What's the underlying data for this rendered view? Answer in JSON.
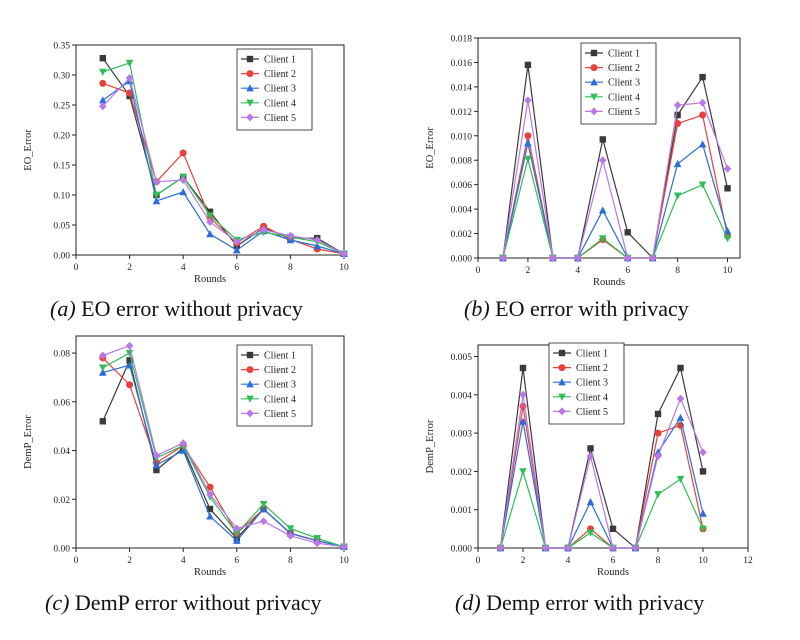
{
  "series_names": [
    "Client 1",
    "Client 2",
    "Client 3",
    "Client 4",
    "Client 5"
  ],
  "series_colors": [
    "#3a3a3a",
    "#e8413c",
    "#2a6fd6",
    "#2fbf56",
    "#b879e6"
  ],
  "series_markers": [
    "square",
    "circle",
    "triangle-up",
    "triangle-down",
    "diamond"
  ],
  "captions": [
    {
      "letter": "(a)",
      "text": " EO error without privacy"
    },
    {
      "letter": "(b)",
      "text": " EO error with privacy"
    },
    {
      "letter": "(c)",
      "text": " DemP error without privacy"
    },
    {
      "letter": "(d)",
      "text": " Demp error with privacy"
    }
  ],
  "chart_data": [
    {
      "type": "line",
      "xlabel": "Rounds",
      "ylabel": "EO_Error",
      "xlim": [
        0,
        10
      ],
      "ylim": [
        0,
        0.35
      ],
      "xticks": [
        0,
        2,
        4,
        6,
        8,
        10
      ],
      "yticks": [
        0,
        0.05,
        0.1,
        0.15,
        0.2,
        0.25,
        0.3,
        0.35
      ],
      "ytick_labels": [
        "0.00",
        "0.05",
        "0.10",
        "0.15",
        "0.20",
        "0.25",
        "0.30",
        "0.35"
      ],
      "grid": false,
      "legend": "top-right",
      "x": [
        1,
        2,
        3,
        4,
        5,
        6,
        7,
        8,
        9,
        10
      ],
      "series": [
        {
          "name": "Client 1",
          "values": [
            0.328,
            0.265,
            0.1,
            0.13,
            0.072,
            0.015,
            0.045,
            0.028,
            0.028,
            0.002
          ]
        },
        {
          "name": "Client 2",
          "values": [
            0.286,
            0.27,
            0.122,
            0.17,
            0.062,
            0.02,
            0.048,
            0.026,
            0.01,
            0.002
          ]
        },
        {
          "name": "Client 3",
          "values": [
            0.258,
            0.29,
            0.09,
            0.105,
            0.035,
            0.008,
            0.04,
            0.025,
            0.015,
            0.002
          ]
        },
        {
          "name": "Client 4",
          "values": [
            0.305,
            0.32,
            0.1,
            0.13,
            0.066,
            0.025,
            0.038,
            0.03,
            0.022,
            0.002
          ]
        },
        {
          "name": "Client 5",
          "values": [
            0.248,
            0.295,
            0.122,
            0.125,
            0.055,
            0.022,
            0.042,
            0.032,
            0.025,
            0.002
          ]
        }
      ]
    },
    {
      "type": "line",
      "xlabel": "Rounds",
      "ylabel": "EO_Error",
      "xlim": [
        0,
        10.5
      ],
      "ylim": [
        0,
        0.018
      ],
      "xticks": [
        0,
        2,
        4,
        6,
        8,
        10
      ],
      "yticks": [
        0,
        0.002,
        0.004,
        0.006,
        0.008,
        0.01,
        0.012,
        0.014,
        0.016,
        0.018
      ],
      "ytick_labels": [
        "0.000",
        "0.002",
        "0.004",
        "0.006",
        "0.008",
        "0.010",
        "0.012",
        "0.014",
        "0.016",
        "0.018"
      ],
      "grid": false,
      "legend": "top-center",
      "x": [
        1,
        2,
        3,
        4,
        5,
        6,
        7,
        8,
        9,
        10
      ],
      "series": [
        {
          "name": "Client 1",
          "values": [
            0,
            0.0158,
            0,
            0,
            0.0097,
            0.0021,
            0,
            0.0117,
            0.0148,
            0.0057
          ]
        },
        {
          "name": "Client 2",
          "values": [
            0,
            0.01,
            0,
            0,
            0.0015,
            0,
            0,
            0.011,
            0.0117,
            0.0018
          ]
        },
        {
          "name": "Client 3",
          "values": [
            0,
            0.0094,
            0,
            0,
            0.0039,
            0,
            0,
            0.0077,
            0.0093,
            0.0022
          ]
        },
        {
          "name": "Client 4",
          "values": [
            0,
            0.0081,
            0,
            0,
            0.0016,
            0,
            0,
            0.0051,
            0.006,
            0.0016
          ]
        },
        {
          "name": "Client 5",
          "values": [
            0,
            0.0129,
            0,
            0,
            0.008,
            0,
            0,
            0.0125,
            0.0127,
            0.0073
          ]
        }
      ]
    },
    {
      "type": "line",
      "xlabel": "Rounds",
      "ylabel": "DemP_Error",
      "xlim": [
        0,
        10
      ],
      "ylim": [
        0,
        0.087
      ],
      "xticks": [
        0,
        2,
        4,
        6,
        8,
        10
      ],
      "yticks": [
        0,
        0.02,
        0.04,
        0.06,
        0.08
      ],
      "ytick_labels": [
        "0.00",
        "0.02",
        "0.04",
        "0.06",
        "0.08"
      ],
      "grid": false,
      "legend": "top-right",
      "x": [
        1,
        2,
        3,
        4,
        5,
        6,
        7,
        8,
        9,
        10
      ],
      "series": [
        {
          "name": "Client 1",
          "values": [
            0.052,
            0.077,
            0.032,
            0.041,
            0.016,
            0.004,
            0.016,
            0.006,
            0.003,
            0.0005
          ]
        },
        {
          "name": "Client 2",
          "values": [
            0.078,
            0.067,
            0.035,
            0.042,
            0.025,
            0.006,
            0.016,
            0.006,
            0.003,
            0.0005
          ]
        },
        {
          "name": "Client 3",
          "values": [
            0.072,
            0.075,
            0.034,
            0.04,
            0.013,
            0.003,
            0.016,
            0.006,
            0.003,
            0.0005
          ]
        },
        {
          "name": "Client 4",
          "values": [
            0.074,
            0.08,
            0.037,
            0.042,
            0.021,
            0.006,
            0.018,
            0.008,
            0.004,
            0.0005
          ]
        },
        {
          "name": "Client 5",
          "values": [
            0.079,
            0.083,
            0.038,
            0.043,
            0.022,
            0.008,
            0.011,
            0.005,
            0.002,
            0.0005
          ]
        }
      ]
    },
    {
      "type": "line",
      "xlabel": "Rounds",
      "ylabel": "DemP_Error",
      "xlim": [
        0,
        12
      ],
      "ylim": [
        0,
        0.0053
      ],
      "xticks": [
        0,
        2,
        4,
        6,
        8,
        10,
        12
      ],
      "yticks": [
        0,
        0.001,
        0.002,
        0.003,
        0.004,
        0.005
      ],
      "ytick_labels": [
        "0.000",
        "0.001",
        "0.002",
        "0.003",
        "0.004",
        "0.005"
      ],
      "grid": false,
      "legend": "top-left",
      "x": [
        1,
        2,
        3,
        4,
        5,
        6,
        7,
        8,
        9,
        10
      ],
      "series": [
        {
          "name": "Client 1",
          "values": [
            0,
            0.0047,
            0,
            0,
            0.0026,
            0.0005,
            0,
            0.0035,
            0.0047,
            0.002
          ]
        },
        {
          "name": "Client 2",
          "values": [
            0,
            0.0037,
            0,
            0,
            0.0005,
            0,
            0,
            0.003,
            0.0032,
            0.0005
          ]
        },
        {
          "name": "Client 3",
          "values": [
            0,
            0.0033,
            0,
            0,
            0.0012,
            0,
            0,
            0.0025,
            0.0034,
            0.0009
          ]
        },
        {
          "name": "Client 4",
          "values": [
            0,
            0.002,
            0,
            0,
            0.0004,
            0,
            0,
            0.0014,
            0.0018,
            0.0005
          ]
        },
        {
          "name": "Client 5",
          "values": [
            0,
            0.004,
            0,
            0,
            0.0024,
            0,
            0,
            0.0024,
            0.0039,
            0.0025
          ]
        }
      ]
    }
  ]
}
